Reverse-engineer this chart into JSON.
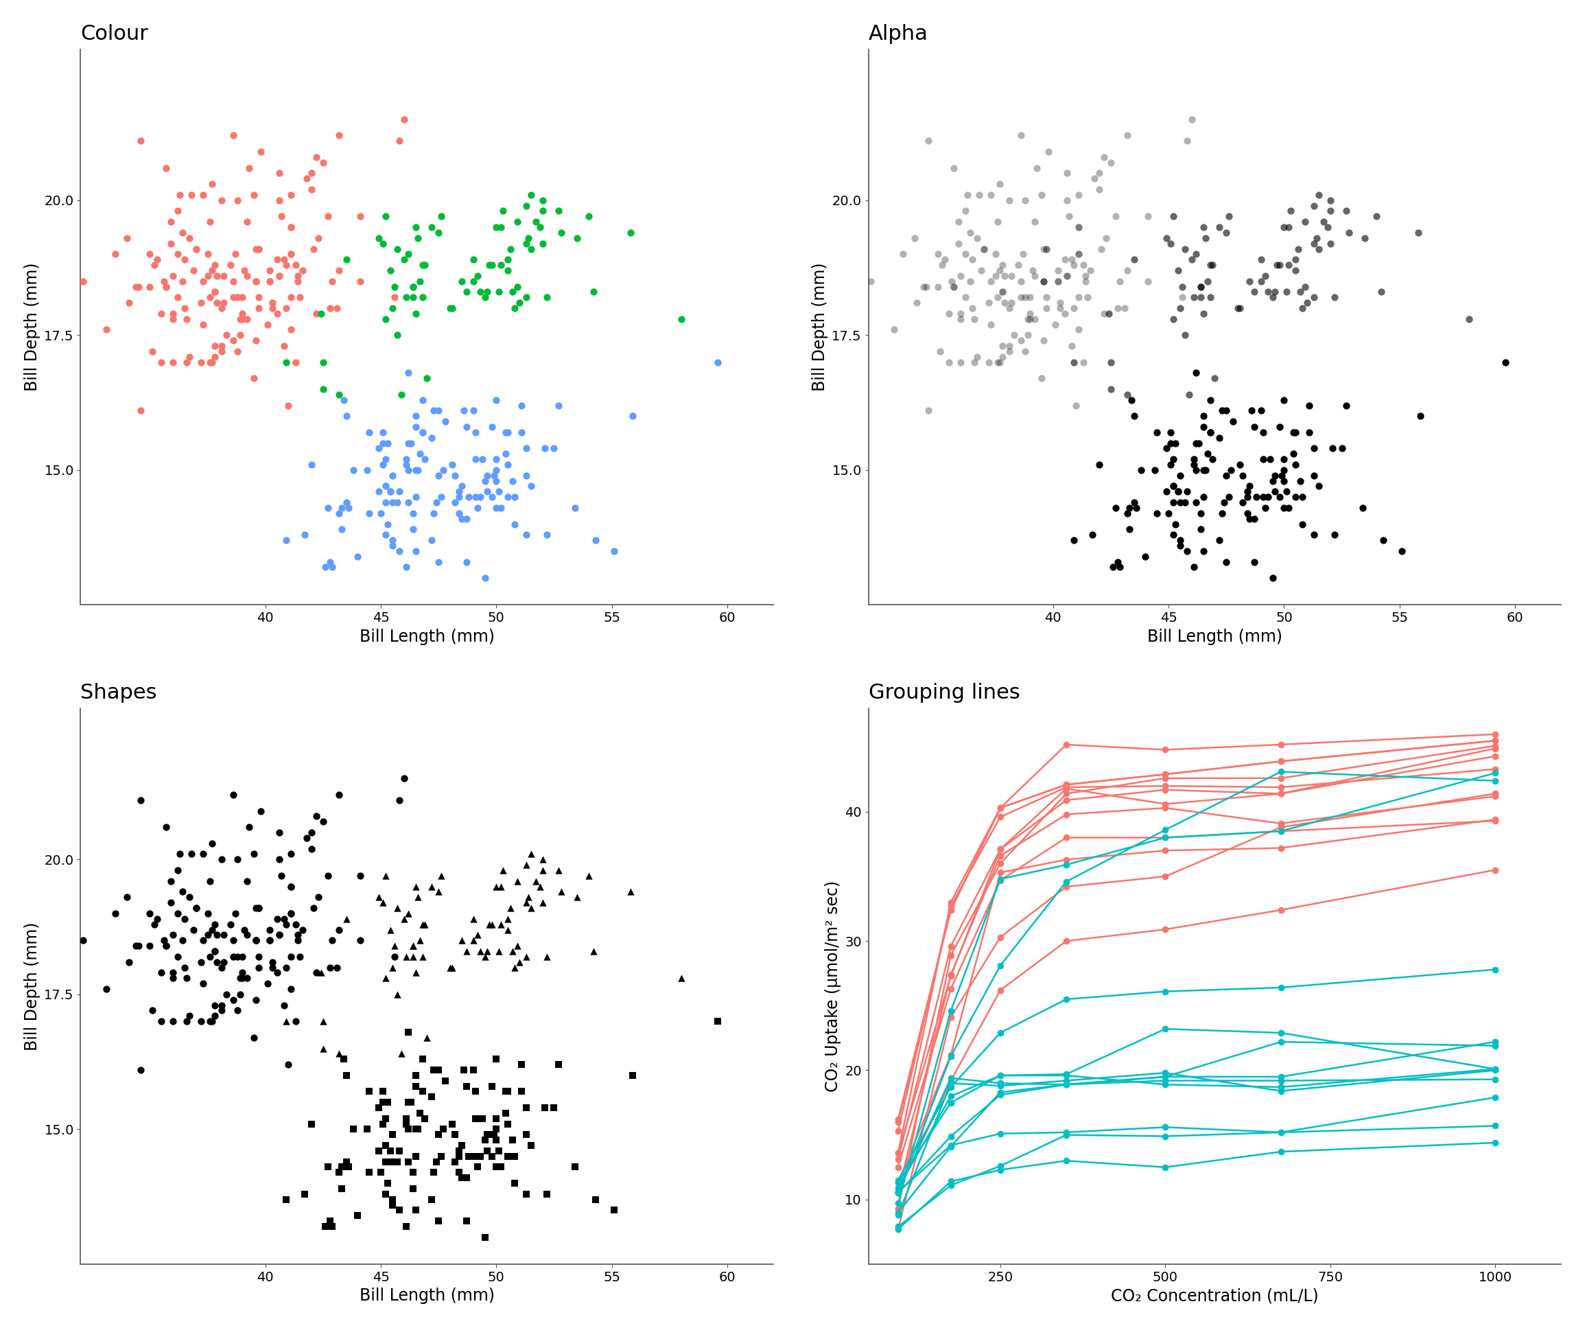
{
  "colour_plot": {
    "title": "Colour",
    "xlabel": "Bill Length (mm)",
    "ylabel": "Bill Depth (mm)",
    "xlim": [
      32,
      62
    ],
    "ylim": [
      12.5,
      22.8
    ],
    "xticks": [
      40,
      45,
      50,
      55,
      60
    ],
    "yticks": [
      15.0,
      17.5,
      20.0
    ],
    "color_adelie": "#F8766D",
    "color_chinstrap": "#00BA38",
    "color_gentoo": "#619CFF"
  },
  "alpha_plot": {
    "title": "Alpha",
    "xlabel": "Bill Length (mm)",
    "ylabel": "Bill Depth (mm)",
    "xlim": [
      32,
      62
    ],
    "ylim": [
      12.5,
      22.8
    ],
    "xticks": [
      40,
      45,
      50,
      55,
      60
    ],
    "yticks": [
      15.0,
      17.5,
      20.0
    ]
  },
  "shapes_plot": {
    "title": "Shapes",
    "xlabel": "Bill Length (mm)",
    "ylabel": "Bill Depth (mm)",
    "xlim": [
      32,
      62
    ],
    "ylim": [
      12.5,
      22.8
    ],
    "xticks": [
      40,
      45,
      50,
      55,
      60
    ],
    "yticks": [
      15.0,
      17.5,
      20.0
    ]
  },
  "lines_plot": {
    "title": "Grouping lines",
    "xlabel": "CO₂ Concentration (mL/L)",
    "ylabel": "CO₂ Uptake (μmol/m² sec)",
    "xlim": [
      50,
      1100
    ],
    "ylim": [
      5,
      48
    ],
    "xticks": [
      250,
      500,
      750,
      1000
    ],
    "yticks": [
      10,
      20,
      30,
      40
    ],
    "conc": [
      95,
      175,
      250,
      350,
      500,
      675,
      1000
    ],
    "quebec_color": "#F8766D",
    "mississippi_color": "#00BFC4",
    "quebec_uptakes": [
      [
        16.0,
        32.4,
        40.3,
        42.1,
        42.9,
        43.9,
        45.5
      ],
      [
        13.6,
        27.3,
        37.1,
        41.8,
        40.6,
        41.4,
        44.3
      ],
      [
        16.2,
        32.4,
        40.3,
        42.1,
        42.9,
        43.9,
        45.5
      ],
      [
        7.7,
        24.1,
        30.3,
        34.2,
        35.0,
        38.8,
        41.4
      ],
      [
        11.3,
        21.2,
        35.3,
        36.3,
        37.0,
        37.2,
        39.4
      ],
      [
        12.5,
        26.3,
        34.7,
        38.0,
        38.0,
        38.5,
        39.3
      ],
      [
        10.6,
        19.2,
        26.2,
        30.0,
        30.9,
        32.4,
        35.5
      ],
      [
        13.1,
        29.6,
        37.1,
        40.9,
        41.7,
        41.4,
        44.9
      ],
      [
        9.3,
        28.9,
        36.0,
        41.4,
        42.6,
        42.6,
        45.1
      ],
      [
        10.5,
        27.4,
        36.6,
        39.8,
        40.3,
        39.1,
        41.2
      ],
      [
        15.3,
        32.7,
        39.6,
        41.9,
        42.0,
        41.9,
        43.3
      ],
      [
        13.6,
        33.0,
        40.3,
        45.2,
        44.8,
        45.2,
        46.0
      ]
    ],
    "mississippi_uptakes": [
      [
        10.5,
        14.9,
        18.1,
        18.9,
        19.5,
        22.2,
        21.9
      ],
      [
        7.7,
        11.4,
        12.3,
        13.0,
        12.5,
        13.7,
        14.4
      ],
      [
        10.6,
        14.2,
        15.1,
        15.2,
        15.6,
        15.2,
        15.7
      ],
      [
        11.3,
        17.5,
        19.6,
        19.7,
        23.2,
        22.9,
        20.1
      ],
      [
        7.9,
        11.1,
        12.6,
        15.0,
        14.9,
        15.2,
        17.9
      ],
      [
        11.5,
        18.7,
        22.9,
        25.5,
        26.1,
        26.4,
        27.8
      ],
      [
        10.5,
        21.1,
        28.1,
        34.6,
        38.6,
        43.1,
        42.4
      ],
      [
        10.6,
        19.4,
        19.0,
        18.9,
        19.5,
        19.5,
        22.2
      ],
      [
        9.7,
        24.6,
        34.8,
        35.9,
        38.0,
        38.5,
        43.0
      ],
      [
        10.9,
        18.0,
        19.6,
        19.6,
        18.9,
        18.7,
        20.1
      ],
      [
        9.0,
        14.1,
        18.3,
        18.9,
        19.2,
        19.2,
        19.3
      ],
      [
        8.8,
        19.0,
        18.8,
        19.2,
        19.8,
        18.4,
        20.0
      ]
    ]
  },
  "background_color": "#FFFFFF",
  "title_fontsize": 22,
  "label_fontsize": 17,
  "tick_fontsize": 14,
  "marker_size": 55,
  "line_marker_size": 7,
  "line_width": 1.8
}
